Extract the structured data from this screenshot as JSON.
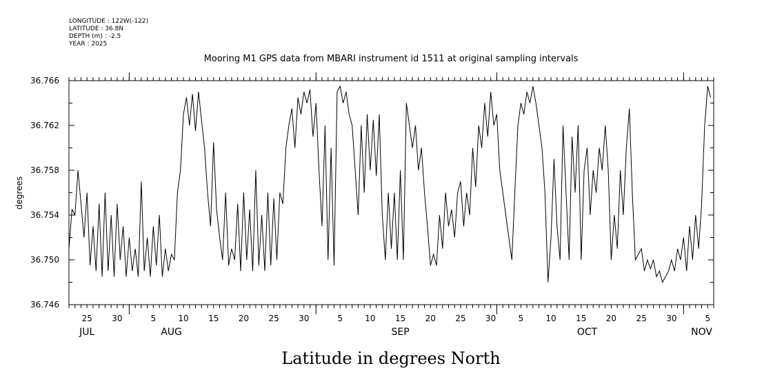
{
  "header": {
    "longitude": "LONGITUDE : 122W(-122)",
    "latitude": "LATITUDE : 36.8N",
    "depth": "DEPTH (m) : -2.5",
    "year": "YEAR : 2025"
  },
  "chart_data": {
    "type": "line",
    "title": "Mooring M1 GPS data from MBARI instrument id 1511 at original sampling intervals",
    "xlabel": "Latitude in degrees North",
    "ylabel": "degrees",
    "ylim": [
      36.746,
      36.766
    ],
    "yticks": [
      "36.766",
      "36.762",
      "36.758",
      "36.754",
      "36.750",
      "36.746"
    ],
    "xlim": [
      "2025-07-22",
      "2025-11-06"
    ],
    "xtick_labels": [
      {
        "date": "2025-07-25",
        "label": "25"
      },
      {
        "date": "2025-07-30",
        "label": "30"
      },
      {
        "date": "2025-08-05",
        "label": "5"
      },
      {
        "date": "2025-08-10",
        "label": "10"
      },
      {
        "date": "2025-08-15",
        "label": "15"
      },
      {
        "date": "2025-08-20",
        "label": "20"
      },
      {
        "date": "2025-08-25",
        "label": "25"
      },
      {
        "date": "2025-08-30",
        "label": "30"
      },
      {
        "date": "2025-09-05",
        "label": "5"
      },
      {
        "date": "2025-09-10",
        "label": "10"
      },
      {
        "date": "2025-09-15",
        "label": "15"
      },
      {
        "date": "2025-09-20",
        "label": "20"
      },
      {
        "date": "2025-09-25",
        "label": "25"
      },
      {
        "date": "2025-09-30",
        "label": "30"
      },
      {
        "date": "2025-10-05",
        "label": "5"
      },
      {
        "date": "2025-10-10",
        "label": "10"
      },
      {
        "date": "2025-10-15",
        "label": "15"
      },
      {
        "date": "2025-10-20",
        "label": "20"
      },
      {
        "date": "2025-10-25",
        "label": "25"
      },
      {
        "date": "2025-10-30",
        "label": "30"
      },
      {
        "date": "2025-11-05",
        "label": "5"
      }
    ],
    "month_labels": [
      {
        "date": "2025-07-25",
        "label": "JUL"
      },
      {
        "date": "2025-08-08",
        "label": "AUG"
      },
      {
        "date": "2025-09-15",
        "label": "SEP"
      },
      {
        "date": "2025-10-16",
        "label": "OCT"
      },
      {
        "date": "2025-11-04",
        "label": "NOV"
      }
    ],
    "month_starts": [
      "2025-08-01",
      "2025-09-01",
      "2025-10-01",
      "2025-11-01"
    ],
    "series": [
      {
        "color": "#000000",
        "points": [
          [
            "2025-07-22",
            36.751
          ],
          [
            "2025-07-22",
            36.7545
          ],
          [
            "2025-07-23",
            36.754
          ],
          [
            "2025-07-23",
            36.758
          ],
          [
            "2025-07-24",
            36.755
          ],
          [
            "2025-07-24",
            36.752
          ],
          [
            "2025-07-25",
            36.756
          ],
          [
            "2025-07-25",
            36.7495
          ],
          [
            "2025-07-26",
            36.753
          ],
          [
            "2025-07-26",
            36.749
          ],
          [
            "2025-07-27",
            36.755
          ],
          [
            "2025-07-27",
            36.7485
          ],
          [
            "2025-07-28",
            36.756
          ],
          [
            "2025-07-28",
            36.749
          ],
          [
            "2025-07-29",
            36.754
          ],
          [
            "2025-07-29",
            36.7485
          ],
          [
            "2025-07-30",
            36.755
          ],
          [
            "2025-07-30",
            36.75
          ],
          [
            "2025-07-31",
            36.753
          ],
          [
            "2025-07-31",
            36.7485
          ],
          [
            "2025-08-01",
            36.752
          ],
          [
            "2025-08-01",
            36.749
          ],
          [
            "2025-08-02",
            36.751
          ],
          [
            "2025-08-02",
            36.7485
          ],
          [
            "2025-08-03",
            36.757
          ],
          [
            "2025-08-03",
            36.749
          ],
          [
            "2025-08-04",
            36.752
          ],
          [
            "2025-08-04",
            36.7485
          ],
          [
            "2025-08-05",
            36.753
          ],
          [
            "2025-08-05",
            36.7495
          ],
          [
            "2025-08-06",
            36.754
          ],
          [
            "2025-08-06",
            36.7485
          ],
          [
            "2025-08-07",
            36.751
          ],
          [
            "2025-08-07",
            36.749
          ],
          [
            "2025-08-08",
            36.7505
          ],
          [
            "2025-08-08",
            36.75
          ],
          [
            "2025-08-09",
            36.756
          ],
          [
            "2025-08-09",
            36.758
          ],
          [
            "2025-08-10",
            36.763
          ],
          [
            "2025-08-10",
            36.7645
          ],
          [
            "2025-08-11",
            36.762
          ],
          [
            "2025-08-11",
            36.7648
          ],
          [
            "2025-08-12",
            36.7615
          ],
          [
            "2025-08-12",
            36.765
          ],
          [
            "2025-08-13",
            36.7625
          ],
          [
            "2025-08-13",
            36.76
          ],
          [
            "2025-08-14",
            36.756
          ],
          [
            "2025-08-14",
            36.753
          ],
          [
            "2025-08-15",
            36.7605
          ],
          [
            "2025-08-15",
            36.7545
          ],
          [
            "2025-08-16",
            36.752
          ],
          [
            "2025-08-16",
            36.75
          ],
          [
            "2025-08-17",
            36.756
          ],
          [
            "2025-08-17",
            36.7495
          ],
          [
            "2025-08-18",
            36.751
          ],
          [
            "2025-08-18",
            36.75
          ],
          [
            "2025-08-19",
            36.755
          ],
          [
            "2025-08-19",
            36.749
          ],
          [
            "2025-08-20",
            36.756
          ],
          [
            "2025-08-20",
            36.75
          ],
          [
            "2025-08-21",
            36.7545
          ],
          [
            "2025-08-21",
            36.749
          ],
          [
            "2025-08-22",
            36.758
          ],
          [
            "2025-08-22",
            36.7495
          ],
          [
            "2025-08-23",
            36.754
          ],
          [
            "2025-08-23",
            36.749
          ],
          [
            "2025-08-24",
            36.756
          ],
          [
            "2025-08-24",
            36.7495
          ],
          [
            "2025-08-25",
            36.7555
          ],
          [
            "2025-08-25",
            36.75
          ],
          [
            "2025-08-26",
            36.756
          ],
          [
            "2025-08-26",
            36.755
          ],
          [
            "2025-08-27",
            36.76
          ],
          [
            "2025-08-27",
            36.762
          ],
          [
            "2025-08-28",
            36.7635
          ],
          [
            "2025-08-28",
            36.76
          ],
          [
            "2025-08-29",
            36.7645
          ],
          [
            "2025-08-29",
            36.763
          ],
          [
            "2025-08-30",
            36.765
          ],
          [
            "2025-08-30",
            36.764
          ],
          [
            "2025-08-31",
            36.7652
          ],
          [
            "2025-08-31",
            36.761
          ],
          [
            "2025-09-01",
            36.764
          ],
          [
            "2025-09-01",
            36.758
          ],
          [
            "2025-09-02",
            36.753
          ],
          [
            "2025-09-02",
            36.762
          ],
          [
            "2025-09-03",
            36.75
          ],
          [
            "2025-09-03",
            36.76
          ],
          [
            "2025-09-04",
            36.7495
          ],
          [
            "2025-09-04",
            36.765
          ],
          [
            "2025-09-05",
            36.7655
          ],
          [
            "2025-09-05",
            36.764
          ],
          [
            "2025-09-06",
            36.765
          ],
          [
            "2025-09-06",
            36.763
          ],
          [
            "2025-09-07",
            36.762
          ],
          [
            "2025-09-07",
            36.758
          ],
          [
            "2025-09-08",
            36.754
          ],
          [
            "2025-09-08",
            36.762
          ],
          [
            "2025-09-09",
            36.756
          ],
          [
            "2025-09-09",
            36.763
          ],
          [
            "2025-09-10",
            36.758
          ],
          [
            "2025-09-10",
            36.7625
          ],
          [
            "2025-09-11",
            36.7575
          ],
          [
            "2025-09-11",
            36.763
          ],
          [
            "2025-09-12",
            36.754
          ],
          [
            "2025-09-12",
            36.75
          ],
          [
            "2025-09-13",
            36.756
          ],
          [
            "2025-09-13",
            36.751
          ],
          [
            "2025-09-14",
            36.756
          ],
          [
            "2025-09-14",
            36.75
          ],
          [
            "2025-09-15",
            36.758
          ],
          [
            "2025-09-15",
            36.75
          ],
          [
            "2025-09-16",
            36.764
          ],
          [
            "2025-09-16",
            36.762
          ],
          [
            "2025-09-17",
            36.76
          ],
          [
            "2025-09-17",
            36.762
          ],
          [
            "2025-09-18",
            36.758
          ],
          [
            "2025-09-18",
            36.76
          ],
          [
            "2025-09-19",
            36.756
          ],
          [
            "2025-09-19",
            36.753
          ],
          [
            "2025-09-20",
            36.7495
          ],
          [
            "2025-09-20",
            36.7505
          ],
          [
            "2025-09-21",
            36.7495
          ],
          [
            "2025-09-21",
            36.754
          ],
          [
            "2025-09-22",
            36.751
          ],
          [
            "2025-09-22",
            36.756
          ],
          [
            "2025-09-23",
            36.753
          ],
          [
            "2025-09-23",
            36.7545
          ],
          [
            "2025-09-24",
            36.752
          ],
          [
            "2025-09-24",
            36.756
          ],
          [
            "2025-09-25",
            36.757
          ],
          [
            "2025-09-25",
            36.753
          ],
          [
            "2025-09-26",
            36.756
          ],
          [
            "2025-09-26",
            36.754
          ],
          [
            "2025-09-27",
            36.76
          ],
          [
            "2025-09-27",
            36.7565
          ],
          [
            "2025-09-28",
            36.762
          ],
          [
            "2025-09-28",
            36.76
          ],
          [
            "2025-09-29",
            36.764
          ],
          [
            "2025-09-29",
            36.761
          ],
          [
            "2025-09-30",
            36.765
          ],
          [
            "2025-09-30",
            36.762
          ],
          [
            "2025-10-01",
            36.763
          ],
          [
            "2025-10-01",
            36.758
          ],
          [
            "2025-10-02",
            36.756
          ],
          [
            "2025-10-02",
            36.754
          ],
          [
            "2025-10-03",
            36.752
          ],
          [
            "2025-10-03",
            36.75
          ],
          [
            "2025-10-04",
            36.756
          ],
          [
            "2025-10-04",
            36.762
          ],
          [
            "2025-10-05",
            36.764
          ],
          [
            "2025-10-05",
            36.763
          ],
          [
            "2025-10-06",
            36.765
          ],
          [
            "2025-10-06",
            36.764
          ],
          [
            "2025-10-07",
            36.7655
          ],
          [
            "2025-10-07",
            36.764
          ],
          [
            "2025-10-08",
            36.762
          ],
          [
            "2025-10-08",
            36.76
          ],
          [
            "2025-10-09",
            36.756
          ],
          [
            "2025-10-09",
            36.748
          ],
          [
            "2025-10-10",
            36.752
          ],
          [
            "2025-10-10",
            36.759
          ],
          [
            "2025-10-11",
            36.753
          ],
          [
            "2025-10-11",
            36.75
          ],
          [
            "2025-10-12",
            36.762
          ],
          [
            "2025-10-12",
            36.756
          ],
          [
            "2025-10-13",
            36.75
          ],
          [
            "2025-10-13",
            36.761
          ],
          [
            "2025-10-14",
            36.756
          ],
          [
            "2025-10-14",
            36.762
          ],
          [
            "2025-10-15",
            36.75
          ],
          [
            "2025-10-15",
            36.758
          ],
          [
            "2025-10-16",
            36.76
          ],
          [
            "2025-10-16",
            36.754
          ],
          [
            "2025-10-17",
            36.758
          ],
          [
            "2025-10-17",
            36.756
          ],
          [
            "2025-10-18",
            36.76
          ],
          [
            "2025-10-18",
            36.758
          ],
          [
            "2025-10-19",
            36.762
          ],
          [
            "2025-10-19",
            36.758
          ],
          [
            "2025-10-20",
            36.75
          ],
          [
            "2025-10-20",
            36.754
          ],
          [
            "2025-10-21",
            36.751
          ],
          [
            "2025-10-21",
            36.758
          ],
          [
            "2025-10-22",
            36.754
          ],
          [
            "2025-10-22",
            36.76
          ],
          [
            "2025-10-23",
            36.7635
          ],
          [
            "2025-10-23",
            36.756
          ],
          [
            "2025-10-24",
            36.75
          ],
          [
            "2025-10-24",
            36.7505
          ],
          [
            "2025-10-25",
            36.751
          ],
          [
            "2025-10-25",
            36.749
          ],
          [
            "2025-10-26",
            36.75
          ],
          [
            "2025-10-26",
            36.7492
          ],
          [
            "2025-10-27",
            36.75
          ],
          [
            "2025-10-27",
            36.7485
          ],
          [
            "2025-10-28",
            36.749
          ],
          [
            "2025-10-28",
            36.748
          ],
          [
            "2025-10-29",
            36.7485
          ],
          [
            "2025-10-29",
            36.749
          ],
          [
            "2025-10-30",
            36.75
          ],
          [
            "2025-10-30",
            36.749
          ],
          [
            "2025-10-31",
            36.751
          ],
          [
            "2025-10-31",
            36.75
          ],
          [
            "2025-11-01",
            36.752
          ],
          [
            "2025-11-01",
            36.749
          ],
          [
            "2025-11-02",
            36.753
          ],
          [
            "2025-11-02",
            36.75
          ],
          [
            "2025-11-03",
            36.754
          ],
          [
            "2025-11-03",
            36.751
          ],
          [
            "2025-11-04",
            36.755
          ],
          [
            "2025-11-04",
            36.762
          ],
          [
            "2025-11-05",
            36.7655
          ],
          [
            "2025-11-05",
            36.7645
          ]
        ]
      }
    ]
  }
}
